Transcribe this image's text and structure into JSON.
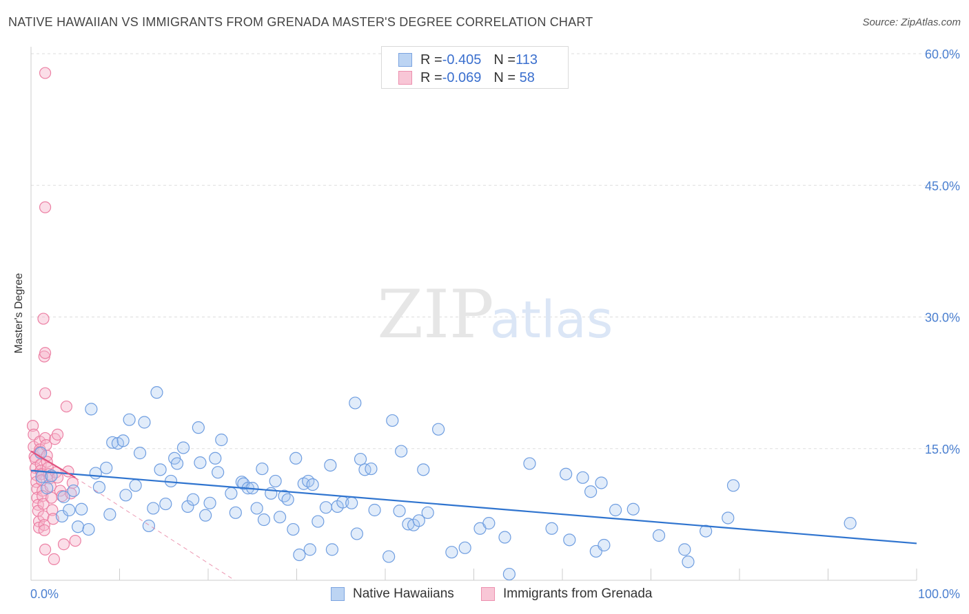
{
  "header": {
    "title": "NATIVE HAWAIIAN VS IMMIGRANTS FROM GRENADA MASTER'S DEGREE CORRELATION CHART",
    "source": "Source: ZipAtlas.com"
  },
  "watermark": {
    "zip": "ZIP",
    "atlas": "atlas"
  },
  "legend": {
    "rows": [
      {
        "r_label": "R = ",
        "r_value": "-0.405",
        "n_label": "N = ",
        "n_value": "113"
      },
      {
        "r_label": "R = ",
        "r_value": "-0.069",
        "n_label": "N = ",
        "n_value": " 58"
      }
    ]
  },
  "colors": {
    "blue_fill": "#a9c8f0",
    "blue_stroke": "#6e9de0",
    "blue_line": "#2f74cf",
    "pink_fill": "#f6b6cb",
    "pink_stroke": "#ec7fa3",
    "pink_line": "#e0537f",
    "tick_text": "#4a7fd0",
    "grid": "#dddddd"
  },
  "chart_data": {
    "type": "scatter",
    "title": "NATIVE HAWAIIAN VS IMMIGRANTS FROM GRENADA MASTER'S DEGREE CORRELATION CHART",
    "xlabel": "",
    "ylabel": "Master's Degree",
    "xlim": [
      0,
      100
    ],
    "ylim": [
      0,
      60
    ],
    "y_ticks": [
      15,
      30,
      45,
      60
    ],
    "y_tick_labels": [
      "15.0%",
      "30.0%",
      "45.0%",
      "60.0%"
    ],
    "x_tick_labels": [
      "0.0%",
      "100.0%"
    ],
    "grid": true,
    "legend_position": "top-center",
    "series": [
      {
        "name": "Native Hawaiians",
        "color": "#6e9de0",
        "trend": {
          "x": [
            0,
            100
          ],
          "y": [
            12.5,
            4.2
          ]
        },
        "points": [
          [
            1.1,
            14.5
          ],
          [
            1.2,
            11.8
          ],
          [
            1.8,
            10.5
          ],
          [
            2.3,
            11.9
          ],
          [
            3.5,
            7.3
          ],
          [
            3.7,
            9.5
          ],
          [
            4.3,
            8.0
          ],
          [
            4.8,
            10.2
          ],
          [
            5.3,
            6.1
          ],
          [
            5.7,
            8.1
          ],
          [
            6.5,
            5.8
          ],
          [
            6.8,
            19.5
          ],
          [
            7.3,
            12.2
          ],
          [
            7.7,
            10.6
          ],
          [
            8.5,
            12.8
          ],
          [
            8.9,
            7.5
          ],
          [
            9.2,
            15.7
          ],
          [
            9.8,
            15.6
          ],
          [
            10.4,
            15.9
          ],
          [
            10.7,
            9.7
          ],
          [
            11.1,
            18.3
          ],
          [
            11.8,
            10.8
          ],
          [
            12.3,
            14.5
          ],
          [
            12.8,
            18.0
          ],
          [
            13.3,
            6.2
          ],
          [
            13.8,
            8.2
          ],
          [
            14.2,
            21.4
          ],
          [
            14.6,
            12.6
          ],
          [
            15.2,
            8.7
          ],
          [
            15.8,
            11.3
          ],
          [
            16.2,
            13.9
          ],
          [
            16.5,
            13.3
          ],
          [
            17.2,
            15.1
          ],
          [
            17.7,
            8.4
          ],
          [
            18.3,
            9.2
          ],
          [
            18.9,
            17.4
          ],
          [
            19.1,
            13.4
          ],
          [
            19.7,
            7.4
          ],
          [
            20.2,
            8.8
          ],
          [
            20.8,
            13.9
          ],
          [
            21.1,
            12.3
          ],
          [
            21.5,
            16.0
          ],
          [
            22.6,
            9.9
          ],
          [
            23.1,
            7.7
          ],
          [
            23.8,
            11.2
          ],
          [
            24.0,
            11.0
          ],
          [
            24.5,
            10.5
          ],
          [
            25.0,
            10.5
          ],
          [
            25.5,
            8.2
          ],
          [
            26.1,
            12.7
          ],
          [
            26.3,
            6.9
          ],
          [
            27.1,
            9.9
          ],
          [
            27.6,
            11.3
          ],
          [
            28.1,
            7.2
          ],
          [
            28.6,
            9.6
          ],
          [
            29.0,
            9.2
          ],
          [
            29.6,
            5.8
          ],
          [
            29.9,
            13.9
          ],
          [
            30.3,
            2.9
          ],
          [
            30.8,
            11.0
          ],
          [
            31.3,
            11.3
          ],
          [
            31.5,
            3.5
          ],
          [
            31.8,
            10.9
          ],
          [
            32.4,
            6.7
          ],
          [
            33.3,
            8.3
          ],
          [
            33.8,
            13.1
          ],
          [
            34.0,
            3.5
          ],
          [
            34.6,
            8.4
          ],
          [
            35.2,
            8.9
          ],
          [
            36.2,
            8.8
          ],
          [
            36.8,
            5.3
          ],
          [
            37.2,
            13.8
          ],
          [
            37.7,
            12.6
          ],
          [
            38.4,
            12.7
          ],
          [
            38.8,
            8.0
          ],
          [
            40.4,
            2.7
          ],
          [
            40.8,
            18.2
          ],
          [
            41.6,
            7.9
          ],
          [
            41.8,
            14.7
          ],
          [
            42.6,
            6.4
          ],
          [
            43.2,
            6.3
          ],
          [
            43.8,
            6.8
          ],
          [
            44.3,
            12.6
          ],
          [
            44.8,
            7.7
          ],
          [
            46.0,
            17.2
          ],
          [
            47.5,
            3.2
          ],
          [
            49.0,
            3.7
          ],
          [
            50.7,
            5.9
          ],
          [
            51.7,
            6.5
          ],
          [
            53.5,
            4.9
          ],
          [
            54.0,
            0.7
          ],
          [
            56.3,
            13.3
          ],
          [
            58.8,
            5.9
          ],
          [
            60.4,
            12.1
          ],
          [
            60.8,
            4.6
          ],
          [
            62.3,
            11.7
          ],
          [
            63.2,
            10.1
          ],
          [
            63.8,
            3.3
          ],
          [
            64.4,
            11.1
          ],
          [
            64.7,
            4.0
          ],
          [
            66.0,
            8.0
          ],
          [
            68.0,
            8.1
          ],
          [
            70.9,
            5.1
          ],
          [
            73.8,
            3.5
          ],
          [
            74.2,
            2.1
          ],
          [
            76.2,
            5.6
          ],
          [
            78.7,
            7.1
          ],
          [
            79.3,
            10.8
          ],
          [
            92.5,
            6.5
          ],
          [
            36.6,
            20.2
          ]
        ]
      },
      {
        "name": "Immigrants from Grenada",
        "color": "#ec7fa3",
        "trend": {
          "x": [
            0,
            5
          ],
          "y": [
            14.7,
            11.7
          ]
        },
        "trend_extended": {
          "x": [
            5,
            23
          ],
          "y": [
            11.7,
            0
          ]
        },
        "points": [
          [
            0.2,
            17.6
          ],
          [
            0.3,
            16.6
          ],
          [
            0.3,
            15.2
          ],
          [
            0.4,
            14.1
          ],
          [
            0.5,
            13.8
          ],
          [
            0.5,
            12.8
          ],
          [
            0.6,
            12.0
          ],
          [
            0.6,
            11.2
          ],
          [
            0.7,
            10.4
          ],
          [
            0.7,
            9.4
          ],
          [
            0.8,
            8.6
          ],
          [
            0.8,
            7.9
          ],
          [
            0.9,
            6.7
          ],
          [
            0.9,
            6.0
          ],
          [
            1.0,
            15.8
          ],
          [
            1.0,
            14.9
          ],
          [
            1.0,
            14.6
          ],
          [
            1.1,
            13.2
          ],
          [
            1.1,
            12.5
          ],
          [
            1.2,
            12.1
          ],
          [
            1.2,
            11.4
          ],
          [
            1.3,
            10.2
          ],
          [
            1.3,
            9.6
          ],
          [
            1.4,
            8.7
          ],
          [
            1.4,
            7.3
          ],
          [
            1.5,
            6.3
          ],
          [
            1.5,
            5.7
          ],
          [
            1.6,
            3.5
          ],
          [
            1.6,
            16.2
          ],
          [
            1.7,
            15.4
          ],
          [
            1.8,
            14.2
          ],
          [
            1.8,
            13.5
          ],
          [
            1.9,
            12.8
          ],
          [
            2.0,
            12.1
          ],
          [
            2.1,
            11.6
          ],
          [
            2.2,
            10.7
          ],
          [
            2.3,
            9.4
          ],
          [
            2.4,
            8.0
          ],
          [
            2.5,
            7.0
          ],
          [
            2.6,
            2.4
          ],
          [
            2.7,
            16.1
          ],
          [
            2.8,
            12.3
          ],
          [
            3.0,
            11.7
          ],
          [
            3.3,
            10.2
          ],
          [
            3.5,
            9.6
          ],
          [
            3.7,
            4.1
          ],
          [
            4.2,
            12.4
          ],
          [
            4.5,
            9.9
          ],
          [
            4.7,
            11.1
          ],
          [
            5.0,
            4.5
          ],
          [
            1.4,
            29.8
          ],
          [
            1.5,
            25.5
          ],
          [
            1.6,
            25.9
          ],
          [
            1.6,
            21.3
          ],
          [
            1.6,
            57.8
          ],
          [
            1.6,
            42.5
          ],
          [
            3.0,
            16.6
          ],
          [
            4.0,
            19.8
          ]
        ]
      }
    ]
  },
  "bottom_legend": {
    "items": [
      {
        "label": "Native Hawaiians"
      },
      {
        "label": "Immigrants from Grenada"
      }
    ]
  }
}
